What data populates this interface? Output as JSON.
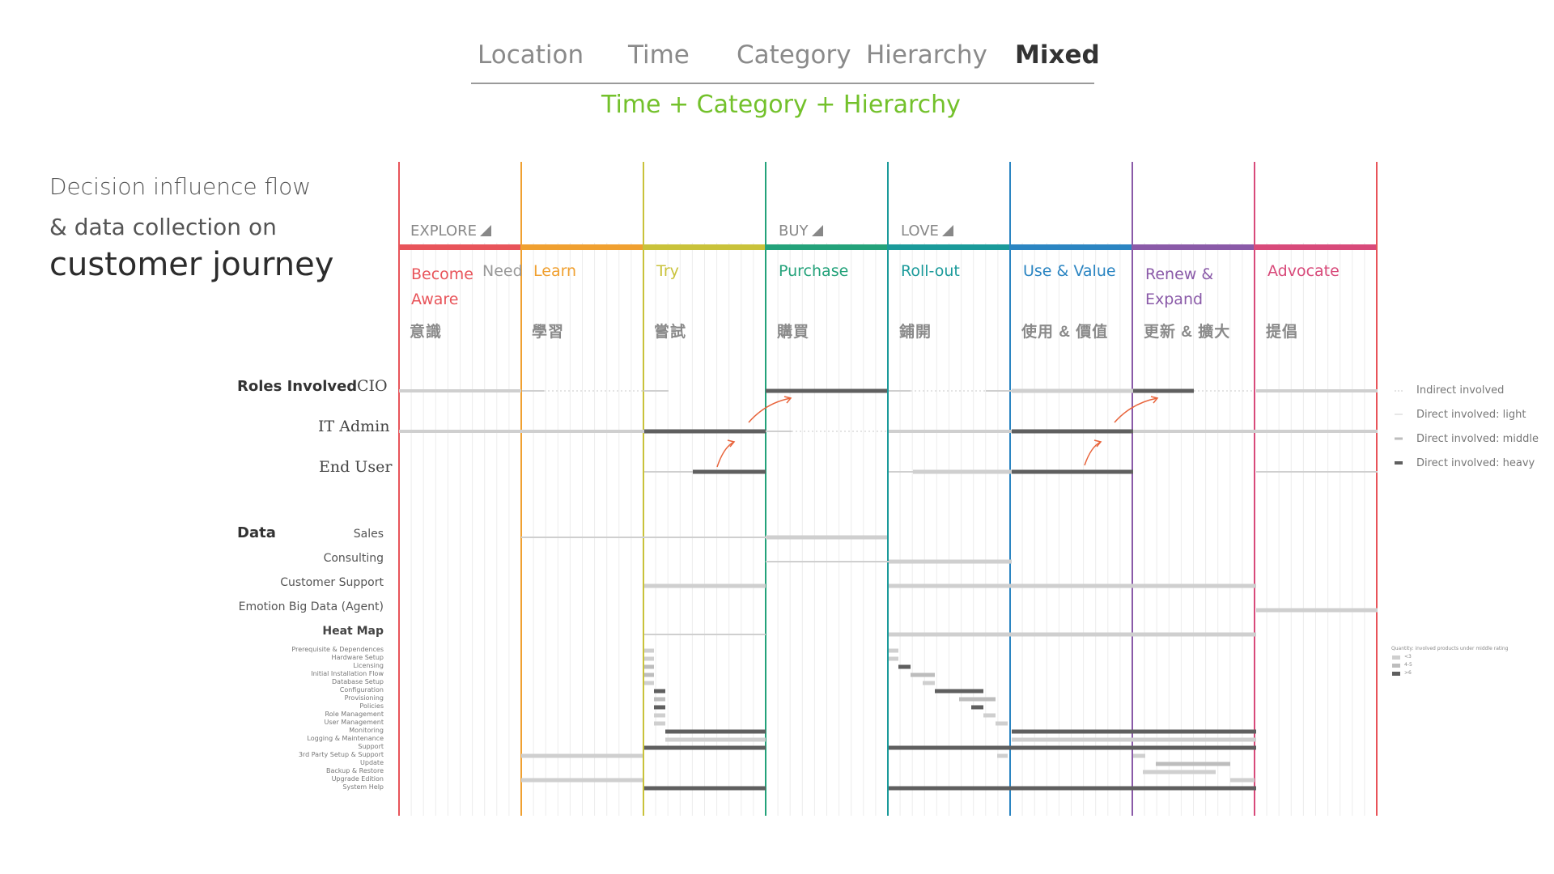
{
  "nav": {
    "tabs": [
      {
        "label": "Location",
        "active": false
      },
      {
        "label": "Time",
        "active": false
      },
      {
        "label": "Category",
        "active": false
      },
      {
        "label": "Hierarchy",
        "active": false
      },
      {
        "label": "Mixed",
        "active": true
      }
    ]
  },
  "subtitle": "Time + Category + Hierarchy",
  "title": {
    "line1": "Decision influence flow",
    "line2": "& data collection on",
    "line3": "customer  journey"
  },
  "phases": [
    "EXPLORE",
    "BUY",
    "LOVE"
  ],
  "stages": [
    {
      "name": "Become Aware",
      "extra": "Need",
      "cjk": "意識",
      "color": "#e8545a"
    },
    {
      "name": "Learn",
      "cjk": "學習",
      "color": "#f0a030"
    },
    {
      "name": "Try",
      "cjk": "嘗試",
      "color": "#c9c23a"
    },
    {
      "name": "Purchase",
      "cjk": "購買",
      "color": "#23a27a"
    },
    {
      "name": "Roll-out",
      "cjk": "鋪開",
      "color": "#1a9a9a"
    },
    {
      "name": "Use & Value",
      "cjk": "使用 & 價值",
      "color": "#2b85c2"
    },
    {
      "name": "Renew & Expand",
      "cjk": "更新 & 擴大",
      "color": "#8a5aa8"
    },
    {
      "name": "Advocate",
      "cjk": "提倡",
      "color": "#d84a7a"
    }
  ],
  "roles": {
    "heading": "Roles Involved",
    "items": [
      "CIO",
      "IT Admin",
      "End User"
    ]
  },
  "data_section": {
    "heading": "Data",
    "items": [
      "Sales",
      "Consulting",
      "Customer Support",
      "Emotion Big Data (Agent)"
    ],
    "heatmap_heading": "Heat Map",
    "heatmap_items": [
      "Prerequisite & Dependences",
      "Hardware Setup",
      "Licensing",
      "Initial Installation Flow",
      "Database Setup",
      "Configuration",
      "Provisioning",
      "Policies",
      "Role Management",
      "User Management",
      "Monitoring",
      "Logging & Maintenance",
      "Support",
      "3rd Party Setup & Support",
      "Update",
      "Backup & Restore",
      "Upgrade Edition",
      "System Help"
    ]
  },
  "legend": {
    "items": [
      "Indirect involved",
      "Direct involved: light",
      "Direct involved: middle",
      "Direct involved: heavy"
    ],
    "quantity_title": "Quantity: involved products under middle rating",
    "quantity_items": [
      "<3",
      "4-5",
      ">6"
    ]
  },
  "colors": {
    "light": "#cfcfcf",
    "middle": "#bdbdbd",
    "heavy": "#5f5f5f",
    "arrow": "#e8633a",
    "accent": "#73c12b"
  }
}
